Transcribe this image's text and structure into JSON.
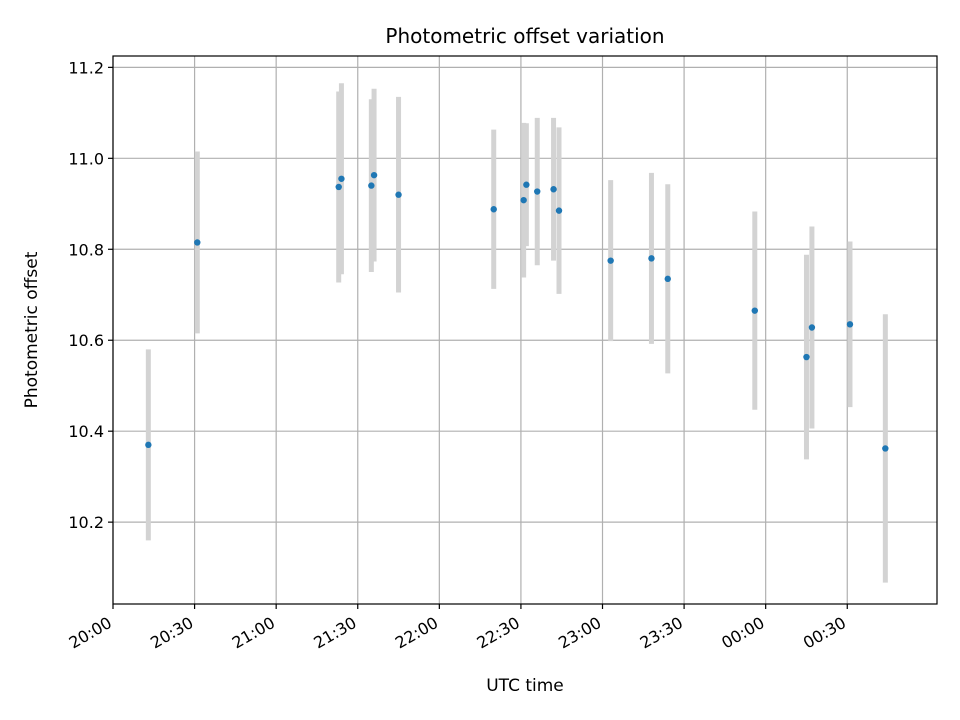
{
  "chart_data": {
    "type": "scatter",
    "title": "Photometric offset variation",
    "xlabel": "UTC time",
    "ylabel": "Photometric offset",
    "x_axis_type": "time",
    "x_ticks": [
      "20:00",
      "20:30",
      "21:00",
      "21:30",
      "22:00",
      "22:30",
      "23:00",
      "23:30",
      "00:00",
      "00:30"
    ],
    "x_tick_minutes": [
      0,
      30,
      60,
      90,
      120,
      150,
      180,
      210,
      240,
      270
    ],
    "xlim": [
      "20:00",
      "01:03"
    ],
    "y_ticks": [
      "10.2",
      "10.4",
      "10.6",
      "10.8",
      "11.0",
      "11.2"
    ],
    "ylim": [
      10.02,
      11.225
    ],
    "grid": true,
    "marker_color": "#1f77b4",
    "errorbar_color": "#d3d3d3",
    "series": [
      {
        "points": [
          {
            "time": "20:13",
            "y": 10.37,
            "err": 0.21
          },
          {
            "time": "20:31",
            "y": 10.815,
            "err": 0.2
          },
          {
            "time": "21:23",
            "y": 10.937,
            "err": 0.21
          },
          {
            "time": "21:24",
            "y": 10.955,
            "err": 0.21
          },
          {
            "time": "21:35",
            "y": 10.94,
            "err": 0.19
          },
          {
            "time": "21:36",
            "y": 10.963,
            "err": 0.19
          },
          {
            "time": "21:45",
            "y": 10.92,
            "err": 0.215
          },
          {
            "time": "22:20",
            "y": 10.888,
            "err": 0.175
          },
          {
            "time": "22:31",
            "y": 10.908,
            "err": 0.17
          },
          {
            "time": "22:32",
            "y": 10.942,
            "err": 0.135
          },
          {
            "time": "22:36",
            "y": 10.927,
            "err": 0.162
          },
          {
            "time": "22:42",
            "y": 10.932,
            "err": 0.157
          },
          {
            "time": "22:44",
            "y": 10.885,
            "err": 0.183
          },
          {
            "time": "23:03",
            "y": 10.775,
            "err": 0.177
          },
          {
            "time": "23:18",
            "y": 10.78,
            "err": 0.188
          },
          {
            "time": "23:24",
            "y": 10.735,
            "err": 0.208
          },
          {
            "time": "23:56",
            "y": 10.665,
            "err": 0.218
          },
          {
            "time": "00:15",
            "y": 10.563,
            "err": 0.225
          },
          {
            "time": "00:17",
            "y": 10.628,
            "err": 0.222
          },
          {
            "time": "00:31",
            "y": 10.635,
            "err": 0.182
          },
          {
            "time": "00:44",
            "y": 10.362,
            "err": 0.295
          }
        ]
      }
    ]
  }
}
